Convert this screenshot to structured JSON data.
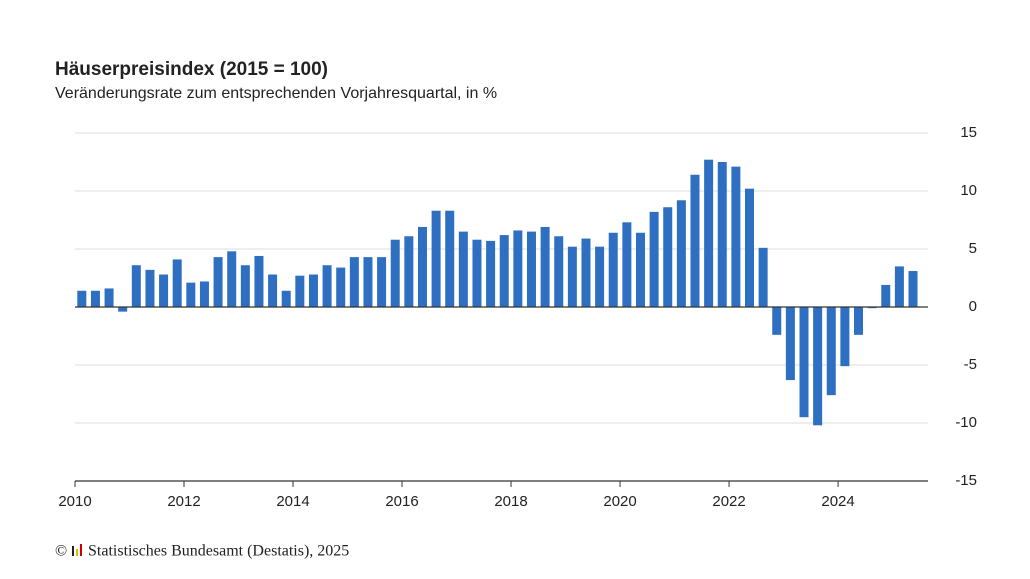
{
  "chart_data": {
    "type": "bar",
    "title": "Häuserpreisindex (2015 = 100)",
    "subtitle": "Veränderungsrate zum entsprechenden Vorjahresquartal, in %",
    "x": [
      2010,
      2010.25,
      2010.5,
      2010.75,
      2011,
      2011.25,
      2011.5,
      2011.75,
      2012,
      2012.25,
      2012.5,
      2012.75,
      2013,
      2013.25,
      2013.5,
      2013.75,
      2014,
      2014.25,
      2014.5,
      2014.75,
      2015,
      2015.25,
      2015.5,
      2015.75,
      2016,
      2016.25,
      2016.5,
      2016.75,
      2017,
      2017.25,
      2017.5,
      2017.75,
      2018,
      2018.25,
      2018.5,
      2018.75,
      2019,
      2019.25,
      2019.5,
      2019.75,
      2020,
      2020.25,
      2020.5,
      2020.75,
      2021,
      2021.25,
      2021.5,
      2021.75,
      2022,
      2022.25,
      2022.5,
      2022.75,
      2023,
      2023.25,
      2023.5,
      2023.75,
      2024,
      2024.25,
      2024.5,
      2024.75,
      2025,
      2025.25
    ],
    "values": [
      1.4,
      1.4,
      1.6,
      -0.4,
      3.6,
      3.2,
      2.8,
      4.1,
      2.1,
      2.2,
      4.3,
      4.8,
      3.6,
      4.4,
      2.8,
      1.4,
      2.7,
      2.8,
      3.6,
      3.4,
      4.3,
      4.3,
      4.3,
      5.8,
      6.1,
      6.9,
      8.3,
      8.3,
      6.5,
      5.8,
      5.7,
      6.2,
      6.6,
      6.5,
      6.9,
      6.1,
      5.2,
      5.9,
      5.2,
      6.4,
      7.3,
      6.4,
      8.2,
      8.6,
      9.2,
      11.4,
      12.7,
      12.5,
      12.1,
      10.2,
      5.1,
      -2.4,
      -6.3,
      -9.5,
      -10.2,
      -7.6,
      -5.1,
      -2.4,
      -0.1,
      1.9,
      3.5,
      3.1
    ],
    "color": "#2e6fc2",
    "xlim": [
      2010,
      2025.65
    ],
    "xticks": [
      2010,
      2012,
      2014,
      2016,
      2018,
      2020,
      2022,
      2024
    ],
    "ylim": [
      -15,
      15
    ],
    "yticks": [
      15,
      10,
      5,
      0,
      -5,
      -10,
      -15
    ],
    "grid": true,
    "copyright": "©",
    "source": "Statistisches Bundesamt (Destatis), 2025"
  }
}
